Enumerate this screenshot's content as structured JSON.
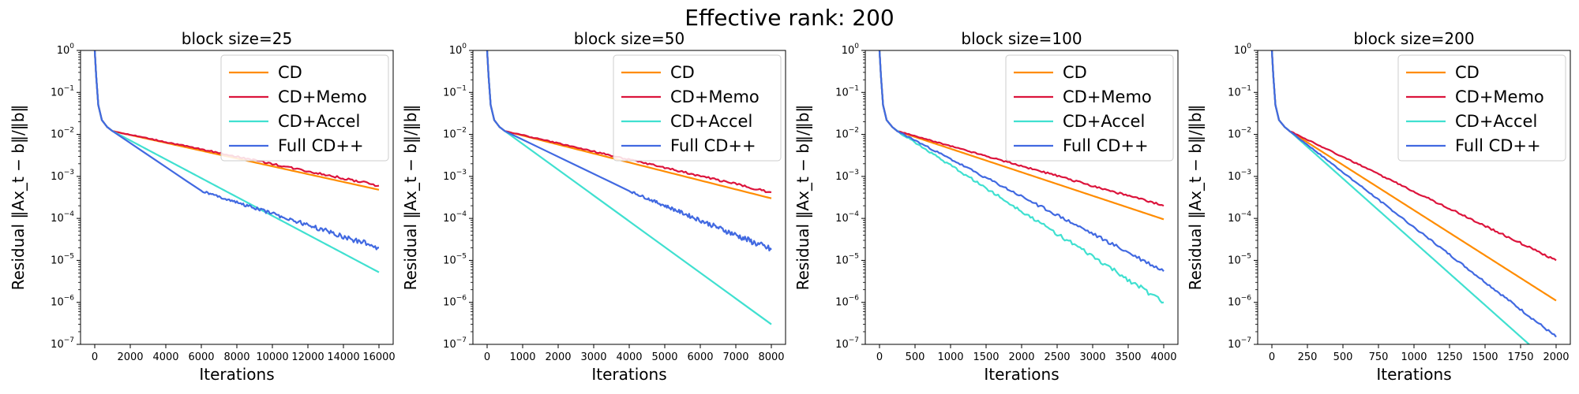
{
  "suptitle": "Effective rank: 200",
  "colors": {
    "CD": "#ff8c00",
    "CD+Memo": "#dc143c",
    "CD+Accel": "#40e0d0",
    "Full CD++": "#4169e1"
  },
  "chart_data": [
    {
      "type": "line",
      "title": "block size=25",
      "xlabel": "Iterations",
      "ylabel": "Residual ‖Ax_t − b‖/‖b‖",
      "yscale": "log",
      "xlim": [
        -800,
        16800
      ],
      "ylim": [
        1e-07,
        1
      ],
      "xticks": [
        0,
        2000,
        4000,
        6000,
        8000,
        10000,
        12000,
        14000,
        16000
      ],
      "xtick_labels": [
        "0",
        "2000",
        "4000",
        "6000",
        "8000",
        "10000",
        "12000",
        "14000",
        "16000"
      ],
      "yticks_exp": [
        -7,
        -6,
        -5,
        -4,
        -3,
        -2,
        -1,
        0
      ],
      "legend": "upper right",
      "series": [
        {
          "name": "CD",
          "x": [
            0,
            80,
            200,
            400,
            700,
            1000,
            16000
          ],
          "y": [
            1,
            0.25,
            0.05,
            0.022,
            0.015,
            0.012,
            0.00048
          ],
          "noise": 0
        },
        {
          "name": "CD+Memo",
          "x": [
            0,
            80,
            200,
            400,
            700,
            1000,
            16000
          ],
          "y": [
            1,
            0.25,
            0.05,
            0.022,
            0.015,
            0.012,
            0.0006
          ],
          "noise": 0.03
        },
        {
          "name": "CD+Accel",
          "x": [
            0,
            80,
            200,
            400,
            700,
            1000,
            16000
          ],
          "y": [
            1,
            0.25,
            0.05,
            0.022,
            0.015,
            0.012,
            5.2e-06
          ],
          "noise": 0
        },
        {
          "name": "Full CD++",
          "x": [
            0,
            80,
            200,
            400,
            700,
            1000,
            6000,
            16000
          ],
          "y": [
            1,
            0.25,
            0.05,
            0.022,
            0.015,
            0.012,
            0.00045,
            2e-05
          ],
          "noise": 0.07
        }
      ]
    },
    {
      "type": "line",
      "title": "block size=50",
      "xlabel": "Iterations",
      "ylabel": "Residual ‖Ax_t − b‖/‖b‖",
      "yscale": "log",
      "xlim": [
        -400,
        8400
      ],
      "ylim": [
        1e-07,
        1
      ],
      "xticks": [
        0,
        1000,
        2000,
        3000,
        4000,
        5000,
        6000,
        7000,
        8000
      ],
      "xtick_labels": [
        "0",
        "1000",
        "2000",
        "3000",
        "4000",
        "5000",
        "6000",
        "7000",
        "8000"
      ],
      "yticks_exp": [
        -7,
        -6,
        -5,
        -4,
        -3,
        -2,
        -1,
        0
      ],
      "legend": "upper right",
      "series": [
        {
          "name": "CD",
          "x": [
            0,
            40,
            100,
            200,
            350,
            500,
            8000
          ],
          "y": [
            1,
            0.25,
            0.05,
            0.022,
            0.015,
            0.012,
            0.0003
          ],
          "noise": 0
        },
        {
          "name": "CD+Memo",
          "x": [
            0,
            40,
            100,
            200,
            350,
            500,
            8000
          ],
          "y": [
            1,
            0.25,
            0.05,
            0.022,
            0.015,
            0.012,
            0.00042
          ],
          "noise": 0.03
        },
        {
          "name": "CD+Accel",
          "x": [
            0,
            40,
            100,
            200,
            350,
            500,
            8000
          ],
          "y": [
            1,
            0.25,
            0.05,
            0.022,
            0.015,
            0.012,
            3e-07
          ],
          "noise": 0
        },
        {
          "name": "Full CD++",
          "x": [
            0,
            40,
            100,
            200,
            350,
            500,
            4000,
            8000
          ],
          "y": [
            1,
            0.25,
            0.05,
            0.022,
            0.015,
            0.012,
            0.00045,
            1.8e-05
          ],
          "noise": 0.08
        }
      ]
    },
    {
      "type": "line",
      "title": "block size=100",
      "xlabel": "Iterations",
      "ylabel": "Residual ‖Ax_t − b‖/‖b‖",
      "yscale": "log",
      "xlim": [
        -200,
        4200
      ],
      "ylim": [
        1e-07,
        1
      ],
      "xticks": [
        0,
        500,
        1000,
        1500,
        2000,
        2500,
        3000,
        3500,
        4000
      ],
      "xtick_labels": [
        "0",
        "500",
        "1000",
        "1500",
        "2000",
        "2500",
        "3000",
        "3500",
        "4000"
      ],
      "yticks_exp": [
        -7,
        -6,
        -5,
        -4,
        -3,
        -2,
        -1,
        0
      ],
      "legend": "upper right",
      "series": [
        {
          "name": "CD",
          "x": [
            0,
            20,
            50,
            100,
            180,
            250,
            4000
          ],
          "y": [
            1,
            0.25,
            0.05,
            0.022,
            0.015,
            0.012,
            9.5e-05
          ],
          "noise": 0
        },
        {
          "name": "CD+Memo",
          "x": [
            0,
            20,
            50,
            100,
            180,
            250,
            4000
          ],
          "y": [
            1,
            0.25,
            0.05,
            0.022,
            0.015,
            0.012,
            0.0002
          ],
          "noise": 0.03
        },
        {
          "name": "CD+Accel",
          "x": [
            0,
            20,
            50,
            100,
            180,
            250,
            4000
          ],
          "y": [
            1,
            0.25,
            0.05,
            0.022,
            0.015,
            0.012,
            1e-06
          ],
          "noise": 0.06
        },
        {
          "name": "Full CD++",
          "x": [
            0,
            20,
            50,
            100,
            180,
            250,
            4000
          ],
          "y": [
            1,
            0.25,
            0.05,
            0.022,
            0.015,
            0.012,
            5.5e-06
          ],
          "noise": 0.05
        }
      ]
    },
    {
      "type": "line",
      "title": "block size=200",
      "xlabel": "Iterations",
      "ylabel": "Residual ‖Ax_t − b‖/‖b‖",
      "yscale": "log",
      "xlim": [
        -100,
        2100
      ],
      "ylim": [
        1e-07,
        1
      ],
      "xticks": [
        0,
        250,
        500,
        750,
        1000,
        1250,
        1500,
        1750,
        2000
      ],
      "xtick_labels": [
        "0",
        "250",
        "500",
        "750",
        "1000",
        "1250",
        "1500",
        "1750",
        "2000"
      ],
      "yticks_exp": [
        -7,
        -6,
        -5,
        -4,
        -3,
        -2,
        -1,
        0
      ],
      "legend": "upper right",
      "series": [
        {
          "name": "CD",
          "x": [
            0,
            10,
            25,
            50,
            90,
            125,
            2000
          ],
          "y": [
            1,
            0.25,
            0.05,
            0.022,
            0.015,
            0.012,
            1.1e-06
          ],
          "noise": 0
        },
        {
          "name": "CD+Memo",
          "x": [
            0,
            10,
            25,
            50,
            90,
            125,
            2000
          ],
          "y": [
            1,
            0.25,
            0.05,
            0.022,
            0.015,
            0.012,
            1e-05
          ],
          "noise": 0.03
        },
        {
          "name": "CD+Accel",
          "x": [
            0,
            10,
            25,
            50,
            90,
            125,
            1810
          ],
          "y": [
            1,
            0.25,
            0.05,
            0.022,
            0.015,
            0.012,
            1e-07
          ],
          "noise": 0
        },
        {
          "name": "Full CD++",
          "x": [
            0,
            10,
            25,
            50,
            90,
            125,
            2000
          ],
          "y": [
            1,
            0.25,
            0.05,
            0.022,
            0.015,
            0.012,
            1.5e-07
          ],
          "noise": 0.03
        }
      ]
    }
  ]
}
